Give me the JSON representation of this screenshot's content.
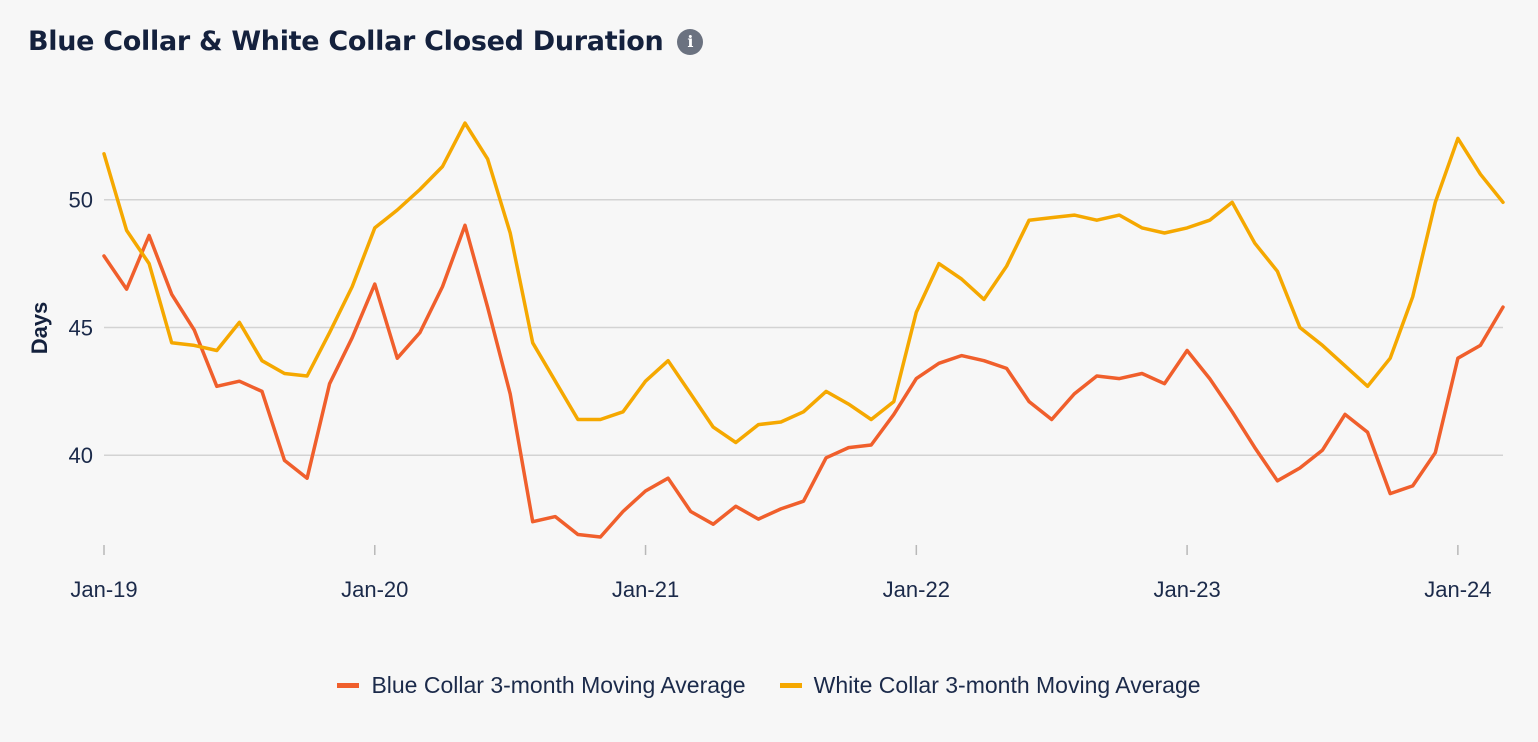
{
  "header": {
    "title": "Blue Collar & White Collar Closed Duration",
    "info_icon": "info-icon"
  },
  "colors": {
    "grid": "#d3d3d3",
    "axis_text": "#1b2a4a",
    "background": "#f7f7f7"
  },
  "chart_data": {
    "type": "line",
    "title": "Blue Collar & White Collar Closed Duration",
    "xlabel": "",
    "ylabel": "Days",
    "ylim": [
      35.9,
      55
    ],
    "yticks": [
      40,
      45,
      50
    ],
    "xticks": [
      {
        "label": "Jan-19",
        "index": 0
      },
      {
        "label": "Jan-20",
        "index": 12
      },
      {
        "label": "Jan-21",
        "index": 24
      },
      {
        "label": "Jan-22",
        "index": 36
      },
      {
        "label": "Jan-23",
        "index": 48
      },
      {
        "label": "Jan-24",
        "index": 60
      }
    ],
    "grid": true,
    "legend_position": "bottom-center",
    "x": [
      "Jan-19",
      "Feb-19",
      "Mar-19",
      "Apr-19",
      "May-19",
      "Jun-19",
      "Jul-19",
      "Aug-19",
      "Sep-19",
      "Oct-19",
      "Nov-19",
      "Dec-19",
      "Jan-20",
      "Feb-20",
      "Mar-20",
      "Apr-20",
      "May-20",
      "Jun-20",
      "Jul-20",
      "Aug-20",
      "Sep-20",
      "Oct-20",
      "Nov-20",
      "Dec-20",
      "Jan-21",
      "Feb-21",
      "Mar-21",
      "Apr-21",
      "May-21",
      "Jun-21",
      "Jul-21",
      "Aug-21",
      "Sep-21",
      "Oct-21",
      "Nov-21",
      "Dec-21",
      "Jan-22",
      "Feb-22",
      "Mar-22",
      "Apr-22",
      "May-22",
      "Jun-22",
      "Jul-22",
      "Aug-22",
      "Sep-22",
      "Oct-22",
      "Nov-22",
      "Dec-22",
      "Jan-23",
      "Feb-23",
      "Mar-23",
      "Apr-23",
      "May-23",
      "Jun-23",
      "Jul-23",
      "Aug-23",
      "Sep-23",
      "Oct-23",
      "Nov-23",
      "Dec-23",
      "Jan-24",
      "Feb-24",
      "Mar-24"
    ],
    "series": [
      {
        "name": "Blue Collar 3-month Moving Average",
        "color": "#f05f2c",
        "values": [
          47.8,
          46.5,
          48.6,
          46.3,
          44.9,
          42.7,
          42.9,
          42.5,
          39.8,
          39.1,
          42.8,
          44.6,
          46.7,
          43.8,
          44.8,
          46.6,
          49.0,
          45.8,
          42.4,
          37.4,
          37.6,
          36.9,
          36.8,
          37.8,
          38.6,
          39.1,
          37.8,
          37.3,
          38.0,
          37.5,
          37.9,
          38.2,
          39.9,
          40.3,
          40.4,
          41.6,
          43.0,
          43.6,
          43.9,
          43.7,
          43.4,
          42.1,
          41.4,
          42.4,
          43.1,
          43.0,
          43.2,
          42.8,
          44.1,
          43.0,
          41.7,
          40.3,
          39.0,
          39.5,
          40.2,
          41.6,
          40.9,
          38.5,
          38.8,
          40.1,
          43.8,
          44.3,
          45.8
        ]
      },
      {
        "name": "White Collar 3-month Moving Average",
        "color": "#f5a800",
        "values": [
          51.8,
          48.8,
          47.5,
          44.4,
          44.3,
          44.1,
          45.2,
          43.7,
          43.2,
          43.1,
          44.8,
          46.6,
          48.9,
          49.6,
          50.4,
          51.3,
          53.0,
          51.6,
          48.7,
          44.4,
          42.9,
          41.4,
          41.4,
          41.7,
          42.9,
          43.7,
          42.4,
          41.1,
          40.5,
          41.2,
          41.3,
          41.7,
          42.5,
          42.0,
          41.4,
          42.1,
          45.6,
          47.5,
          46.9,
          46.1,
          47.4,
          49.2,
          49.3,
          49.4,
          49.2,
          49.4,
          48.9,
          48.7,
          48.9,
          49.2,
          49.9,
          48.3,
          47.2,
          45.0,
          44.3,
          43.5,
          42.7,
          43.8,
          46.2,
          49.9,
          52.4,
          51.0,
          49.9
        ]
      }
    ]
  }
}
